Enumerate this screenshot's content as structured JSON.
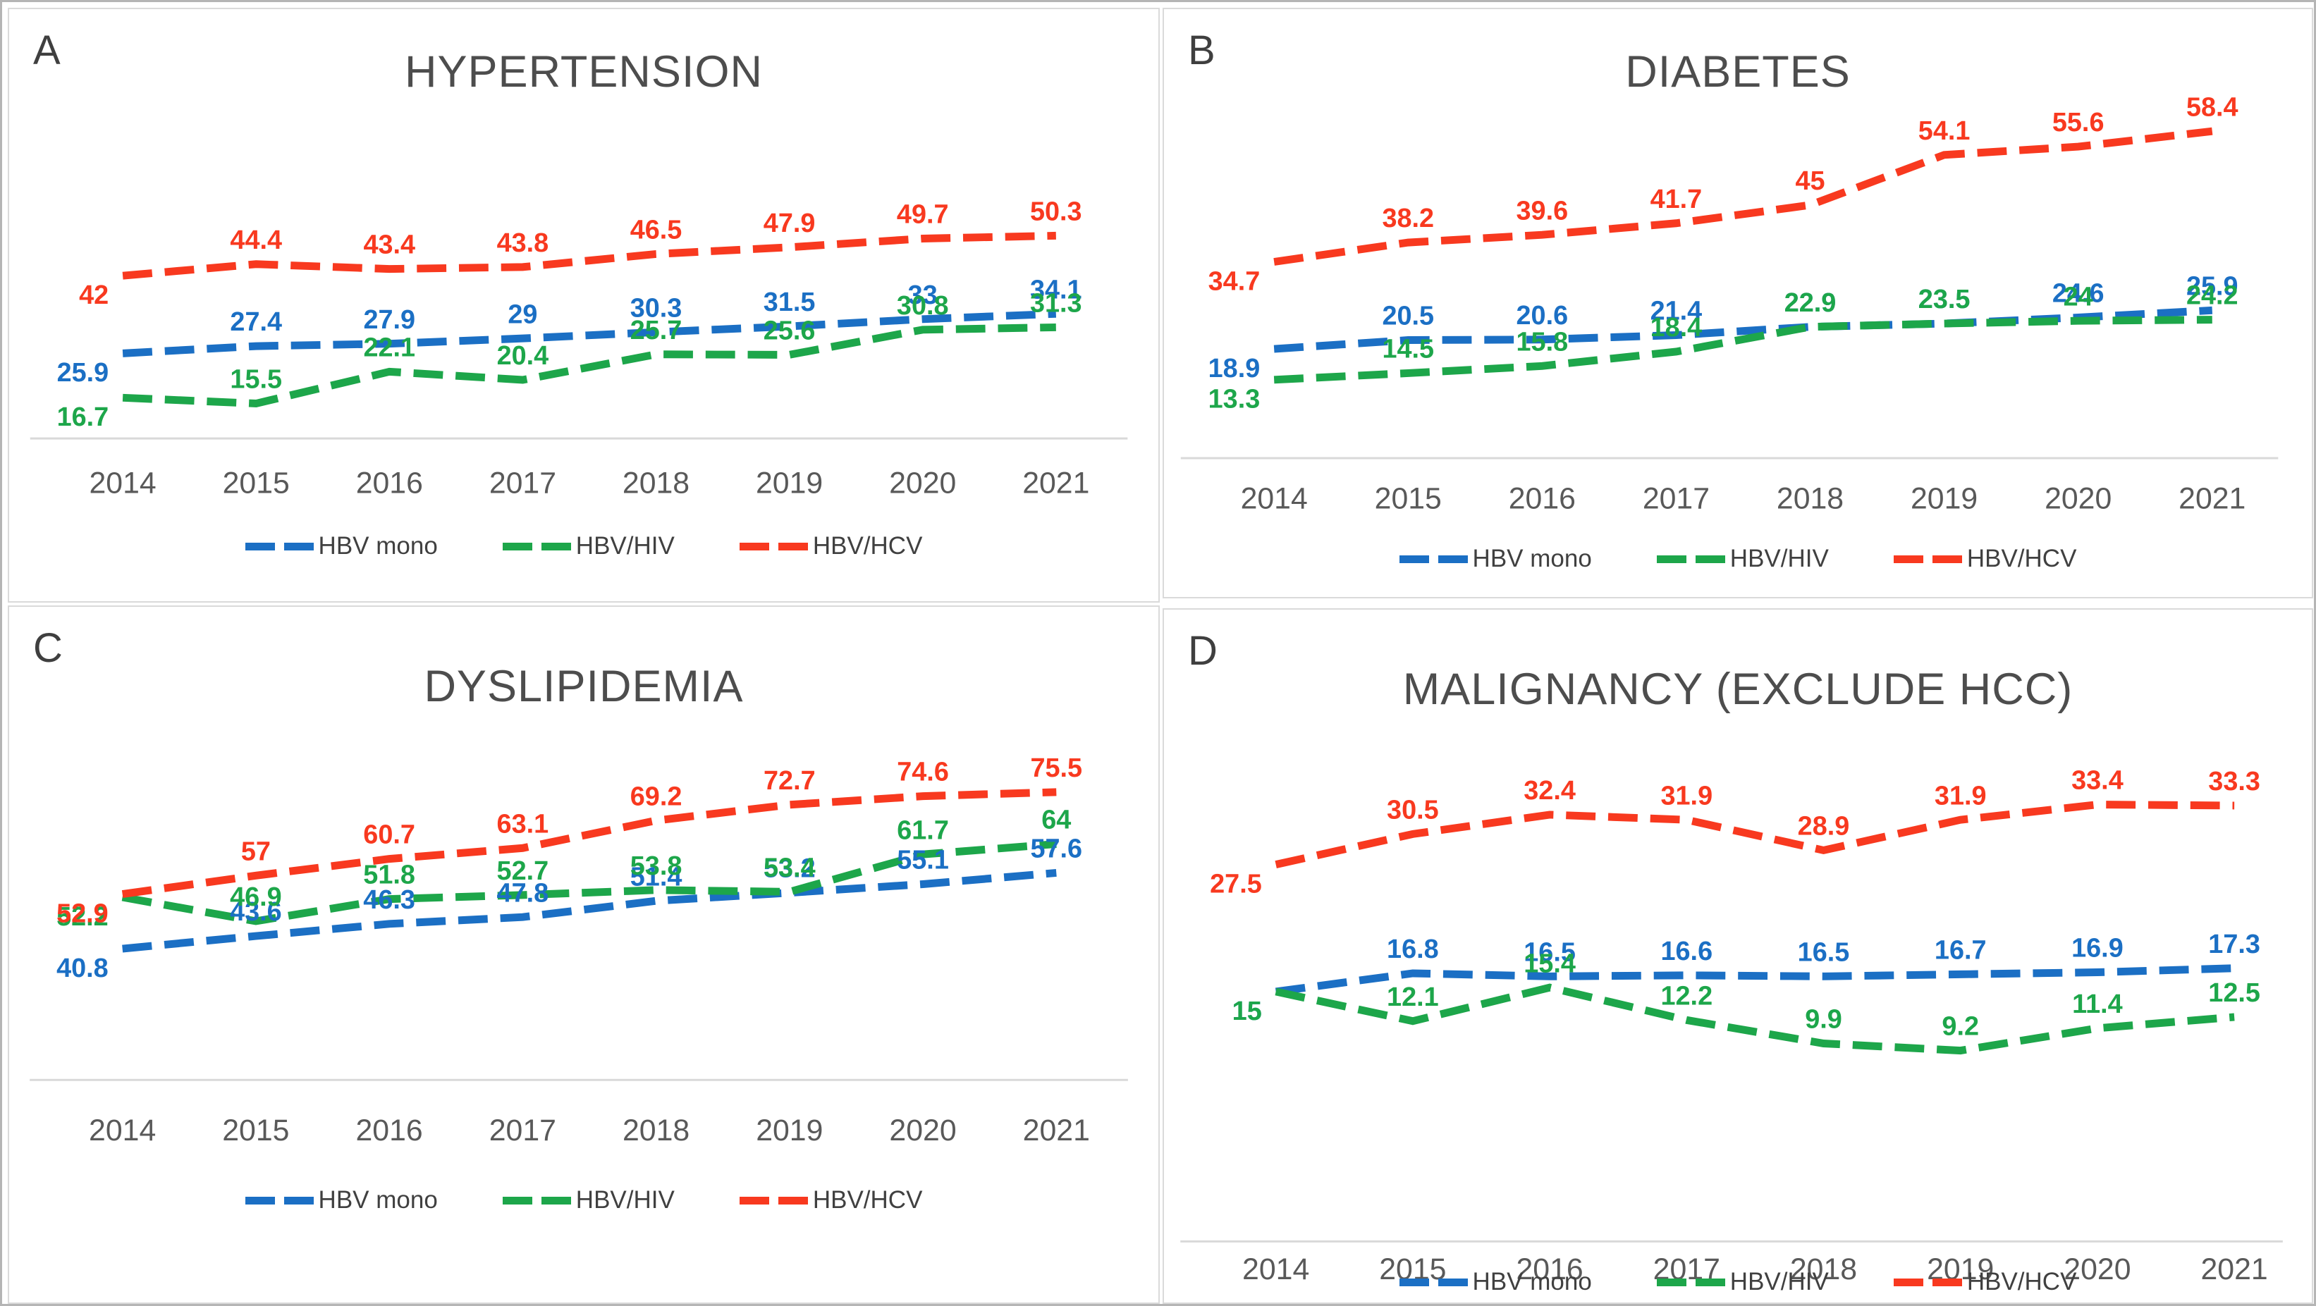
{
  "figure": {
    "background": "#ffffff",
    "outer_border_color": "#b5b5b5",
    "panel_border_color": "#dadada",
    "axis_line_color": "#d9d9d9",
    "tick_text_color": "#595959",
    "title_text_color": "#4d4d4d",
    "panel_letter_color": "#3f3f3f",
    "legend_text_color": "#404040"
  },
  "legend": {
    "items": [
      {
        "label": "HBV mono",
        "color": "#1b6fc4"
      },
      {
        "label": "HBV/HIV",
        "color": "#1da64a"
      },
      {
        "label": "HBV/HCV",
        "color": "#f8391f"
      }
    ]
  },
  "chart_data": [
    {
      "id": "A",
      "panel_label": "A",
      "title": "HYPERTENSION",
      "type": "line",
      "legend_position": "bottom",
      "grid": false,
      "categories": [
        "2014",
        "2015",
        "2016",
        "2017",
        "2018",
        "2019",
        "2020",
        "2021"
      ],
      "ylim": [
        10,
        58
      ],
      "series": [
        {
          "name": "HBV mono",
          "color": "#1b6fc4",
          "values": [
            25.9,
            27.4,
            27.9,
            29,
            30.3,
            31.5,
            33,
            34.1
          ]
        },
        {
          "name": "HBV/HIV",
          "color": "#1da64a",
          "values": [
            16.7,
            15.5,
            22.1,
            20.4,
            25.7,
            25.6,
            30.8,
            31.3
          ]
        },
        {
          "name": "HBV/HCV",
          "color": "#f8391f",
          "values": [
            42,
            44.4,
            43.4,
            43.8,
            46.5,
            47.9,
            49.7,
            50.3
          ]
        }
      ]
    },
    {
      "id": "B",
      "panel_label": "B",
      "title": "DIABETES",
      "type": "line",
      "legend_position": "bottom",
      "grid": false,
      "categories": [
        "2014",
        "2015",
        "2016",
        "2017",
        "2018",
        "2019",
        "2020",
        "2021"
      ],
      "ylim": [
        8,
        64
      ],
      "series": [
        {
          "name": "HBV mono",
          "color": "#1b6fc4",
          "values": [
            18.9,
            20.5,
            20.6,
            21.4,
            22.9,
            23.5,
            24.6,
            25.9
          ]
        },
        {
          "name": "HBV/HIV",
          "color": "#1da64a",
          "values": [
            13.3,
            14.5,
            15.8,
            18.4,
            22.9,
            23.5,
            24,
            24.2
          ]
        },
        {
          "name": "HBV/HCV",
          "color": "#f8391f",
          "values": [
            34.7,
            38.2,
            39.6,
            41.7,
            45,
            54.1,
            55.6,
            58.4
          ]
        }
      ]
    },
    {
      "id": "C",
      "panel_label": "C",
      "title": "DYSLIPIDEMIA",
      "type": "line",
      "legend_position": "bottom",
      "grid": false,
      "categories": [
        "2014",
        "2015",
        "2016",
        "2017",
        "2018",
        "2019",
        "2020",
        "2021"
      ],
      "ylim": [
        38,
        80
      ],
      "series": [
        {
          "name": "HBV mono",
          "color": "#1b6fc4",
          "values": [
            40.8,
            43.6,
            46.3,
            47.8,
            51.4,
            53.2,
            55.1,
            57.6
          ]
        },
        {
          "name": "HBV/HIV",
          "color": "#1da64a",
          "values": [
            52.2,
            46.9,
            51.8,
            52.7,
            53.8,
            53.4,
            61.7,
            64
          ]
        },
        {
          "name": "HBV/HCV",
          "color": "#f8391f",
          "values": [
            52.9,
            57,
            60.7,
            63.1,
            69.2,
            72.7,
            74.6,
            75.5
          ]
        }
      ]
    },
    {
      "id": "D",
      "panel_label": "D",
      "title": "MALIGNANCY (EXCLUDE HCC)",
      "type": "line",
      "legend_position": "bottom",
      "grid": false,
      "categories": [
        "2014",
        "2015",
        "2016",
        "2017",
        "2018",
        "2019",
        "2020",
        "2021"
      ],
      "ylim": [
        7,
        36
      ],
      "series": [
        {
          "name": "HBV mono",
          "color": "#1b6fc4",
          "values": [
            15,
            16.8,
            16.5,
            16.6,
            16.5,
            16.7,
            16.9,
            17.3
          ]
        },
        {
          "name": "HBV/HIV",
          "color": "#1da64a",
          "values": [
            15,
            12.1,
            15.4,
            12.2,
            9.9,
            9.2,
            11.4,
            12.5
          ]
        },
        {
          "name": "HBV/HCV",
          "color": "#f8391f",
          "values": [
            27.5,
            30.5,
            32.4,
            31.9,
            28.9,
            31.9,
            33.4,
            33.3
          ]
        }
      ]
    }
  ]
}
